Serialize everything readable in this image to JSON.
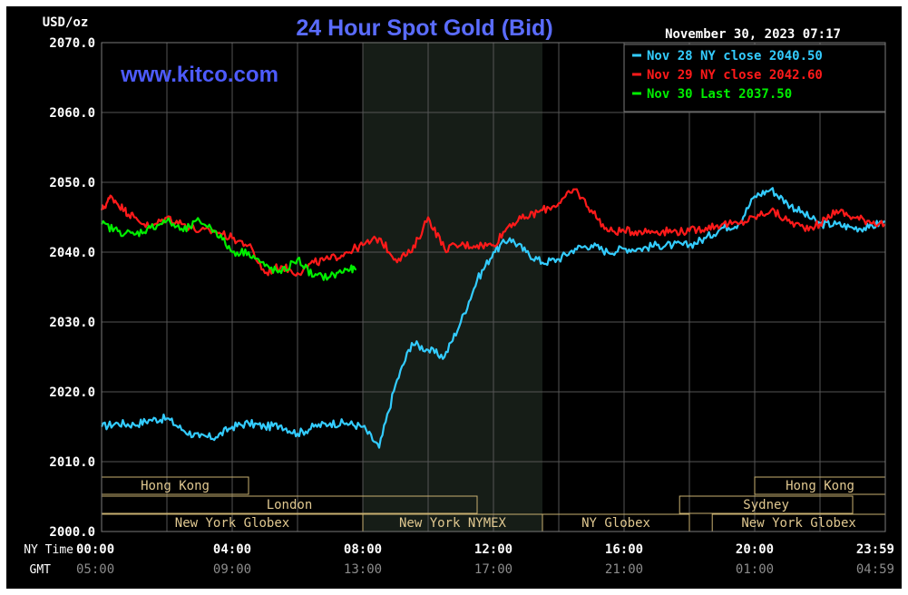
{
  "chart_data": {
    "type": "line",
    "title": "24 Hour Spot Gold (Bid)",
    "watermark": "www.kitco.com",
    "unit_label": "USD/oz",
    "timestamp": "November 30, 2023 07:17",
    "ylim": [
      2000,
      2070
    ],
    "grid": true,
    "legend_position": "top-right",
    "y_ticks": [
      "2070.0",
      "2060.0",
      "2050.0",
      "2040.0",
      "2030.0",
      "2020.0",
      "2010.0",
      "2000.0"
    ],
    "x_row_ny": {
      "label": "NY Time",
      "ticks": [
        "00:00",
        "04:00",
        "08:00",
        "12:00",
        "16:00",
        "20:00",
        "23:59"
      ]
    },
    "x_row_gmt": {
      "label": "GMT",
      "ticks": [
        "05:00",
        "09:00",
        "13:00",
        "17:00",
        "21:00",
        "01:00",
        "04:59"
      ]
    },
    "highlight_band": {
      "start": 8.0,
      "end": 13.5
    },
    "legend": [
      {
        "text": "Nov 28 NY close 2040.50",
        "color": "#33ccff"
      },
      {
        "text": "Nov 29 NY close 2042.60",
        "color": "#ff1a1a"
      },
      {
        "text": "Nov 30 Last 2037.50",
        "color": "#00ee00"
      }
    ],
    "sessions": [
      {
        "label": "Hong Kong",
        "row": 0,
        "start": 0.0,
        "end": 4.5
      },
      {
        "label": "Hong Kong",
        "row": 0,
        "start": 20.0,
        "end": 24.0
      },
      {
        "label": "London",
        "row": 1,
        "start": 0.0,
        "end": 11.5
      },
      {
        "label": "Sydney",
        "row": 1,
        "start": 17.7,
        "end": 23.0
      },
      {
        "label": "New York Globex",
        "row": 2,
        "start": 0.0,
        "end": 8.0
      },
      {
        "label": "New York NYMEX",
        "row": 2,
        "start": 8.0,
        "end": 13.5
      },
      {
        "label": "NY Globex",
        "row": 2,
        "start": 13.5,
        "end": 18.0
      },
      {
        "label": "New York Globex",
        "row": 2,
        "start": 18.7,
        "end": 24.0
      }
    ],
    "series": [
      {
        "name": "Nov 28 NY close 2040.50",
        "color": "#33ccff",
        "x": [
          0,
          0.5,
          1,
          1.5,
          2,
          2.5,
          3,
          3.5,
          4,
          4.5,
          5,
          5.5,
          6,
          6.5,
          7,
          7.5,
          8,
          8.5,
          9,
          9.5,
          10,
          10.5,
          11,
          11.5,
          12,
          12.5,
          13,
          13.5,
          14,
          14.5,
          15,
          15.5,
          16,
          16.5,
          17,
          17.5,
          18,
          18.5,
          19,
          19.5,
          20,
          20.5,
          21,
          21.5,
          22,
          22.5,
          23,
          23.5,
          23.98
        ],
        "values": [
          2015,
          2015.5,
          2015.3,
          2016,
          2016.2,
          2014.5,
          2013.5,
          2013.5,
          2015,
          2015.5,
          2015,
          2015.2,
          2014,
          2015,
          2015.5,
          2015.5,
          2015,
          2012,
          2021,
          2027,
          2026,
          2025,
          2030,
          2036,
          2040,
          2042,
          2040,
          2038.5,
          2039,
          2040.5,
          2041,
          2040,
          2040.5,
          2040.5,
          2041,
          2041,
          2041,
          2042,
          2043.5,
          2044,
          2048,
          2049,
          2047,
          2045.5,
          2044,
          2044,
          2043.5,
          2043.5,
          2044.5
        ]
      },
      {
        "name": "Nov 29 NY close 2042.60",
        "color": "#ff1a1a",
        "x": [
          0,
          0.3,
          0.7,
          1,
          1.5,
          2,
          2.5,
          3,
          3.5,
          4,
          4.5,
          5,
          5.5,
          6,
          6.5,
          7,
          7.5,
          8,
          8.5,
          9,
          9.5,
          10,
          10.5,
          11,
          11.5,
          12,
          12.5,
          13,
          13.5,
          14,
          14.5,
          15,
          15.5,
          16,
          16.5,
          17,
          17.5,
          18,
          18.5,
          19,
          19.5,
          20,
          20.5,
          21,
          21.5,
          22,
          22.5,
          23,
          23.5,
          23.98
        ],
        "values": [
          2046,
          2048,
          2046,
          2045,
          2043.5,
          2045,
          2044,
          2043,
          2043,
          2042,
          2041,
          2037,
          2038,
          2037,
          2038.5,
          2039,
          2040,
          2041,
          2042,
          2039,
          2040,
          2045,
          2040.5,
          2041,
          2041,
          2041,
          2044,
          2045,
          2046,
          2047,
          2049,
          2046,
          2043,
          2043,
          2043,
          2043,
          2043,
          2043,
          2043.5,
          2044,
          2044,
          2045,
          2046,
          2044.5,
          2043.5,
          2044,
          2046,
          2045,
          2044.5,
          2044
        ]
      },
      {
        "name": "Nov 30 Last 2037.50",
        "color": "#00ee00",
        "x": [
          0,
          0.5,
          1,
          1.5,
          2,
          2.5,
          3,
          3.5,
          4,
          4.5,
          5,
          5.5,
          6,
          6.5,
          7,
          7.5,
          7.8
        ],
        "values": [
          2044,
          2043,
          2042.5,
          2043.5,
          2044.5,
          2043,
          2044.5,
          2043,
          2040,
          2040,
          2038,
          2037,
          2039,
          2036.5,
          2036.5,
          2037.5,
          2037.5
        ]
      }
    ]
  }
}
